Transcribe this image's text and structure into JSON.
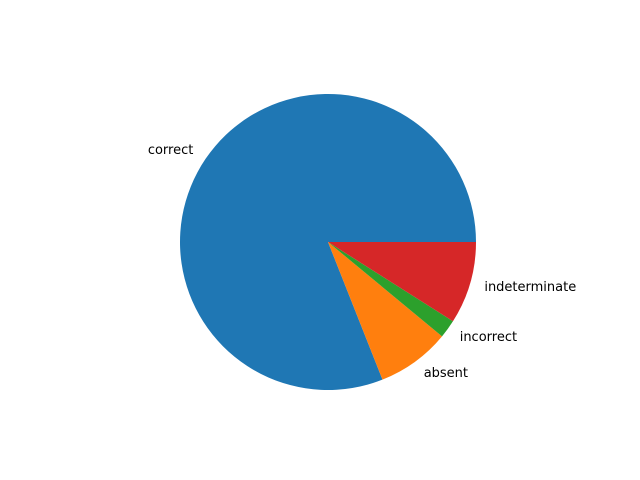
{
  "chart_data": {
    "type": "pie",
    "title": "",
    "start_angle_deg": 0,
    "direction": "counterclockwise",
    "slices": [
      {
        "label": "correct",
        "value": 81,
        "color": "#1f77b4"
      },
      {
        "label": "absent",
        "value": 8,
        "color": "#ff7f0e"
      },
      {
        "label": "incorrect",
        "value": 2,
        "color": "#2ca02c"
      },
      {
        "label": "indeterminate",
        "value": 9,
        "color": "#d62728"
      }
    ]
  }
}
